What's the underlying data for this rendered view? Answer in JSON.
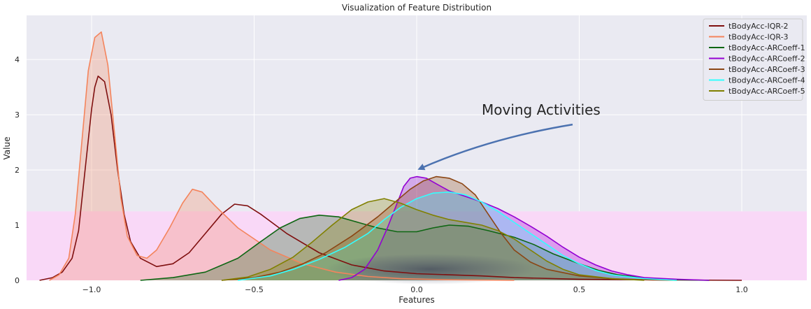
{
  "chart_data": {
    "type": "area",
    "title": "Visualization of Feature Distribution",
    "xlabel": "Features",
    "ylabel": "Value",
    "xlim": [
      -1.2,
      1.2
    ],
    "ylim": [
      0,
      4.8
    ],
    "x_ticks": [
      -1.0,
      -0.5,
      0.0,
      0.5,
      1.0
    ],
    "x_tick_labels": [
      "−1.0",
      "−0.5",
      "0.0",
      "0.5",
      "1.0"
    ],
    "y_ticks": [
      0,
      1,
      2,
      3,
      4
    ],
    "y_tick_labels": [
      "0",
      "1",
      "2",
      "3",
      "4"
    ],
    "grid": true,
    "legend_position": "top-right",
    "highlight_band": {
      "y_range": [
        0,
        1.25
      ],
      "color": "#f9d8f7"
    },
    "annotation": {
      "text": "Moving Activities",
      "text_xy": [
        0.2,
        3.0
      ],
      "arrow_to": [
        0.0,
        2.0
      ]
    },
    "series": [
      {
        "name": "tBodyAcc-IQR-2",
        "color": "#7f0f0f",
        "fill": false,
        "points": [
          [
            -1.16,
            0.0
          ],
          [
            -1.12,
            0.05
          ],
          [
            -1.09,
            0.15
          ],
          [
            -1.06,
            0.4
          ],
          [
            -1.04,
            0.9
          ],
          [
            -1.02,
            2.0
          ],
          [
            -1.0,
            3.1
          ],
          [
            -0.99,
            3.5
          ],
          [
            -0.98,
            3.7
          ],
          [
            -0.96,
            3.6
          ],
          [
            -0.94,
            3.0
          ],
          [
            -0.92,
            2.0
          ],
          [
            -0.9,
            1.2
          ],
          [
            -0.88,
            0.7
          ],
          [
            -0.85,
            0.4
          ],
          [
            -0.8,
            0.25
          ],
          [
            -0.75,
            0.3
          ],
          [
            -0.7,
            0.5
          ],
          [
            -0.65,
            0.85
          ],
          [
            -0.6,
            1.2
          ],
          [
            -0.56,
            1.38
          ],
          [
            -0.52,
            1.35
          ],
          [
            -0.48,
            1.2
          ],
          [
            -0.4,
            0.85
          ],
          [
            -0.3,
            0.5
          ],
          [
            -0.2,
            0.28
          ],
          [
            -0.1,
            0.17
          ],
          [
            0.0,
            0.12
          ],
          [
            0.1,
            0.1
          ],
          [
            0.2,
            0.08
          ],
          [
            0.3,
            0.05
          ],
          [
            0.5,
            0.02
          ],
          [
            0.7,
            0.01
          ],
          [
            1.0,
            0.0
          ]
        ]
      },
      {
        "name": "tBodyAcc-IQR-3",
        "color": "#f4845c",
        "fill": true,
        "points": [
          [
            -1.13,
            0.0
          ],
          [
            -1.1,
            0.1
          ],
          [
            -1.07,
            0.4
          ],
          [
            -1.05,
            1.2
          ],
          [
            -1.03,
            2.5
          ],
          [
            -1.01,
            3.8
          ],
          [
            -0.99,
            4.4
          ],
          [
            -0.97,
            4.5
          ],
          [
            -0.95,
            3.9
          ],
          [
            -0.93,
            2.7
          ],
          [
            -0.91,
            1.5
          ],
          [
            -0.89,
            0.8
          ],
          [
            -0.86,
            0.45
          ],
          [
            -0.83,
            0.4
          ],
          [
            -0.8,
            0.55
          ],
          [
            -0.76,
            0.95
          ],
          [
            -0.72,
            1.4
          ],
          [
            -0.69,
            1.65
          ],
          [
            -0.66,
            1.6
          ],
          [
            -0.62,
            1.35
          ],
          [
            -0.55,
            0.95
          ],
          [
            -0.45,
            0.55
          ],
          [
            -0.35,
            0.3
          ],
          [
            -0.25,
            0.15
          ],
          [
            -0.15,
            0.07
          ],
          [
            -0.05,
            0.03
          ],
          [
            0.1,
            0.01
          ],
          [
            0.3,
            0.0
          ]
        ]
      },
      {
        "name": "tBodyAcc-ARCoeff-1",
        "color": "#0e6613",
        "fill": true,
        "points": [
          [
            -0.85,
            0.0
          ],
          [
            -0.75,
            0.05
          ],
          [
            -0.65,
            0.15
          ],
          [
            -0.55,
            0.4
          ],
          [
            -0.48,
            0.7
          ],
          [
            -0.42,
            0.95
          ],
          [
            -0.36,
            1.12
          ],
          [
            -0.3,
            1.18
          ],
          [
            -0.24,
            1.15
          ],
          [
            -0.18,
            1.05
          ],
          [
            -0.12,
            0.95
          ],
          [
            -0.06,
            0.88
          ],
          [
            0.0,
            0.88
          ],
          [
            0.05,
            0.95
          ],
          [
            0.1,
            1.0
          ],
          [
            0.16,
            0.98
          ],
          [
            0.22,
            0.9
          ],
          [
            0.3,
            0.78
          ],
          [
            0.36,
            0.65
          ],
          [
            0.42,
            0.48
          ],
          [
            0.5,
            0.3
          ],
          [
            0.56,
            0.18
          ],
          [
            0.62,
            0.1
          ],
          [
            0.7,
            0.04
          ],
          [
            0.8,
            0.01
          ],
          [
            0.9,
            0.0
          ]
        ]
      },
      {
        "name": "tBodyAcc-ARCoeff-2",
        "color": "#9400d3",
        "fill": true,
        "points": [
          [
            -0.24,
            0.0
          ],
          [
            -0.2,
            0.05
          ],
          [
            -0.16,
            0.2
          ],
          [
            -0.12,
            0.55
          ],
          [
            -0.09,
            0.95
          ],
          [
            -0.06,
            1.4
          ],
          [
            -0.04,
            1.7
          ],
          [
            -0.02,
            1.85
          ],
          [
            0.0,
            1.88
          ],
          [
            0.03,
            1.85
          ],
          [
            0.06,
            1.75
          ],
          [
            0.1,
            1.62
          ],
          [
            0.15,
            1.52
          ],
          [
            0.2,
            1.42
          ],
          [
            0.25,
            1.3
          ],
          [
            0.3,
            1.15
          ],
          [
            0.35,
            0.98
          ],
          [
            0.4,
            0.8
          ],
          [
            0.45,
            0.6
          ],
          [
            0.5,
            0.42
          ],
          [
            0.55,
            0.28
          ],
          [
            0.6,
            0.17
          ],
          [
            0.65,
            0.1
          ],
          [
            0.7,
            0.05
          ],
          [
            0.8,
            0.02
          ],
          [
            0.9,
            0.0
          ]
        ]
      },
      {
        "name": "tBodyAcc-ARCoeff-3",
        "color": "#8b4513",
        "fill": true,
        "points": [
          [
            -0.6,
            0.0
          ],
          [
            -0.5,
            0.05
          ],
          [
            -0.42,
            0.15
          ],
          [
            -0.35,
            0.3
          ],
          [
            -0.28,
            0.5
          ],
          [
            -0.2,
            0.8
          ],
          [
            -0.12,
            1.15
          ],
          [
            -0.06,
            1.45
          ],
          [
            -0.02,
            1.65
          ],
          [
            0.02,
            1.8
          ],
          [
            0.06,
            1.88
          ],
          [
            0.1,
            1.85
          ],
          [
            0.14,
            1.75
          ],
          [
            0.18,
            1.55
          ],
          [
            0.22,
            1.2
          ],
          [
            0.26,
            0.85
          ],
          [
            0.3,
            0.55
          ],
          [
            0.35,
            0.33
          ],
          [
            0.4,
            0.2
          ],
          [
            0.5,
            0.08
          ],
          [
            0.6,
            0.03
          ],
          [
            0.7,
            0.01
          ],
          [
            0.8,
            0.0
          ]
        ]
      },
      {
        "name": "tBodyAcc-ARCoeff-4",
        "color": "#33ffff",
        "fill": true,
        "points": [
          [
            -0.55,
            0.0
          ],
          [
            -0.45,
            0.08
          ],
          [
            -0.38,
            0.2
          ],
          [
            -0.3,
            0.38
          ],
          [
            -0.22,
            0.6
          ],
          [
            -0.15,
            0.85
          ],
          [
            -0.1,
            1.1
          ],
          [
            -0.05,
            1.32
          ],
          [
            0.0,
            1.48
          ],
          [
            0.05,
            1.58
          ],
          [
            0.1,
            1.6
          ],
          [
            0.15,
            1.55
          ],
          [
            0.2,
            1.42
          ],
          [
            0.25,
            1.25
          ],
          [
            0.3,
            1.05
          ],
          [
            0.35,
            0.85
          ],
          [
            0.4,
            0.65
          ],
          [
            0.45,
            0.45
          ],
          [
            0.5,
            0.3
          ],
          [
            0.55,
            0.18
          ],
          [
            0.6,
            0.1
          ],
          [
            0.7,
            0.03
          ],
          [
            0.8,
            0.0
          ]
        ]
      },
      {
        "name": "tBodyAcc-ARCoeff-5",
        "color": "#808000",
        "fill": true,
        "points": [
          [
            -0.6,
            0.0
          ],
          [
            -0.52,
            0.06
          ],
          [
            -0.45,
            0.2
          ],
          [
            -0.38,
            0.42
          ],
          [
            -0.32,
            0.7
          ],
          [
            -0.26,
            1.0
          ],
          [
            -0.2,
            1.28
          ],
          [
            -0.15,
            1.42
          ],
          [
            -0.1,
            1.48
          ],
          [
            -0.05,
            1.4
          ],
          [
            0.0,
            1.28
          ],
          [
            0.05,
            1.18
          ],
          [
            0.1,
            1.1
          ],
          [
            0.15,
            1.05
          ],
          [
            0.2,
            1.0
          ],
          [
            0.25,
            0.9
          ],
          [
            0.3,
            0.75
          ],
          [
            0.35,
            0.55
          ],
          [
            0.4,
            0.35
          ],
          [
            0.45,
            0.2
          ],
          [
            0.5,
            0.1
          ],
          [
            0.6,
            0.03
          ],
          [
            0.7,
            0.0
          ]
        ]
      }
    ]
  }
}
